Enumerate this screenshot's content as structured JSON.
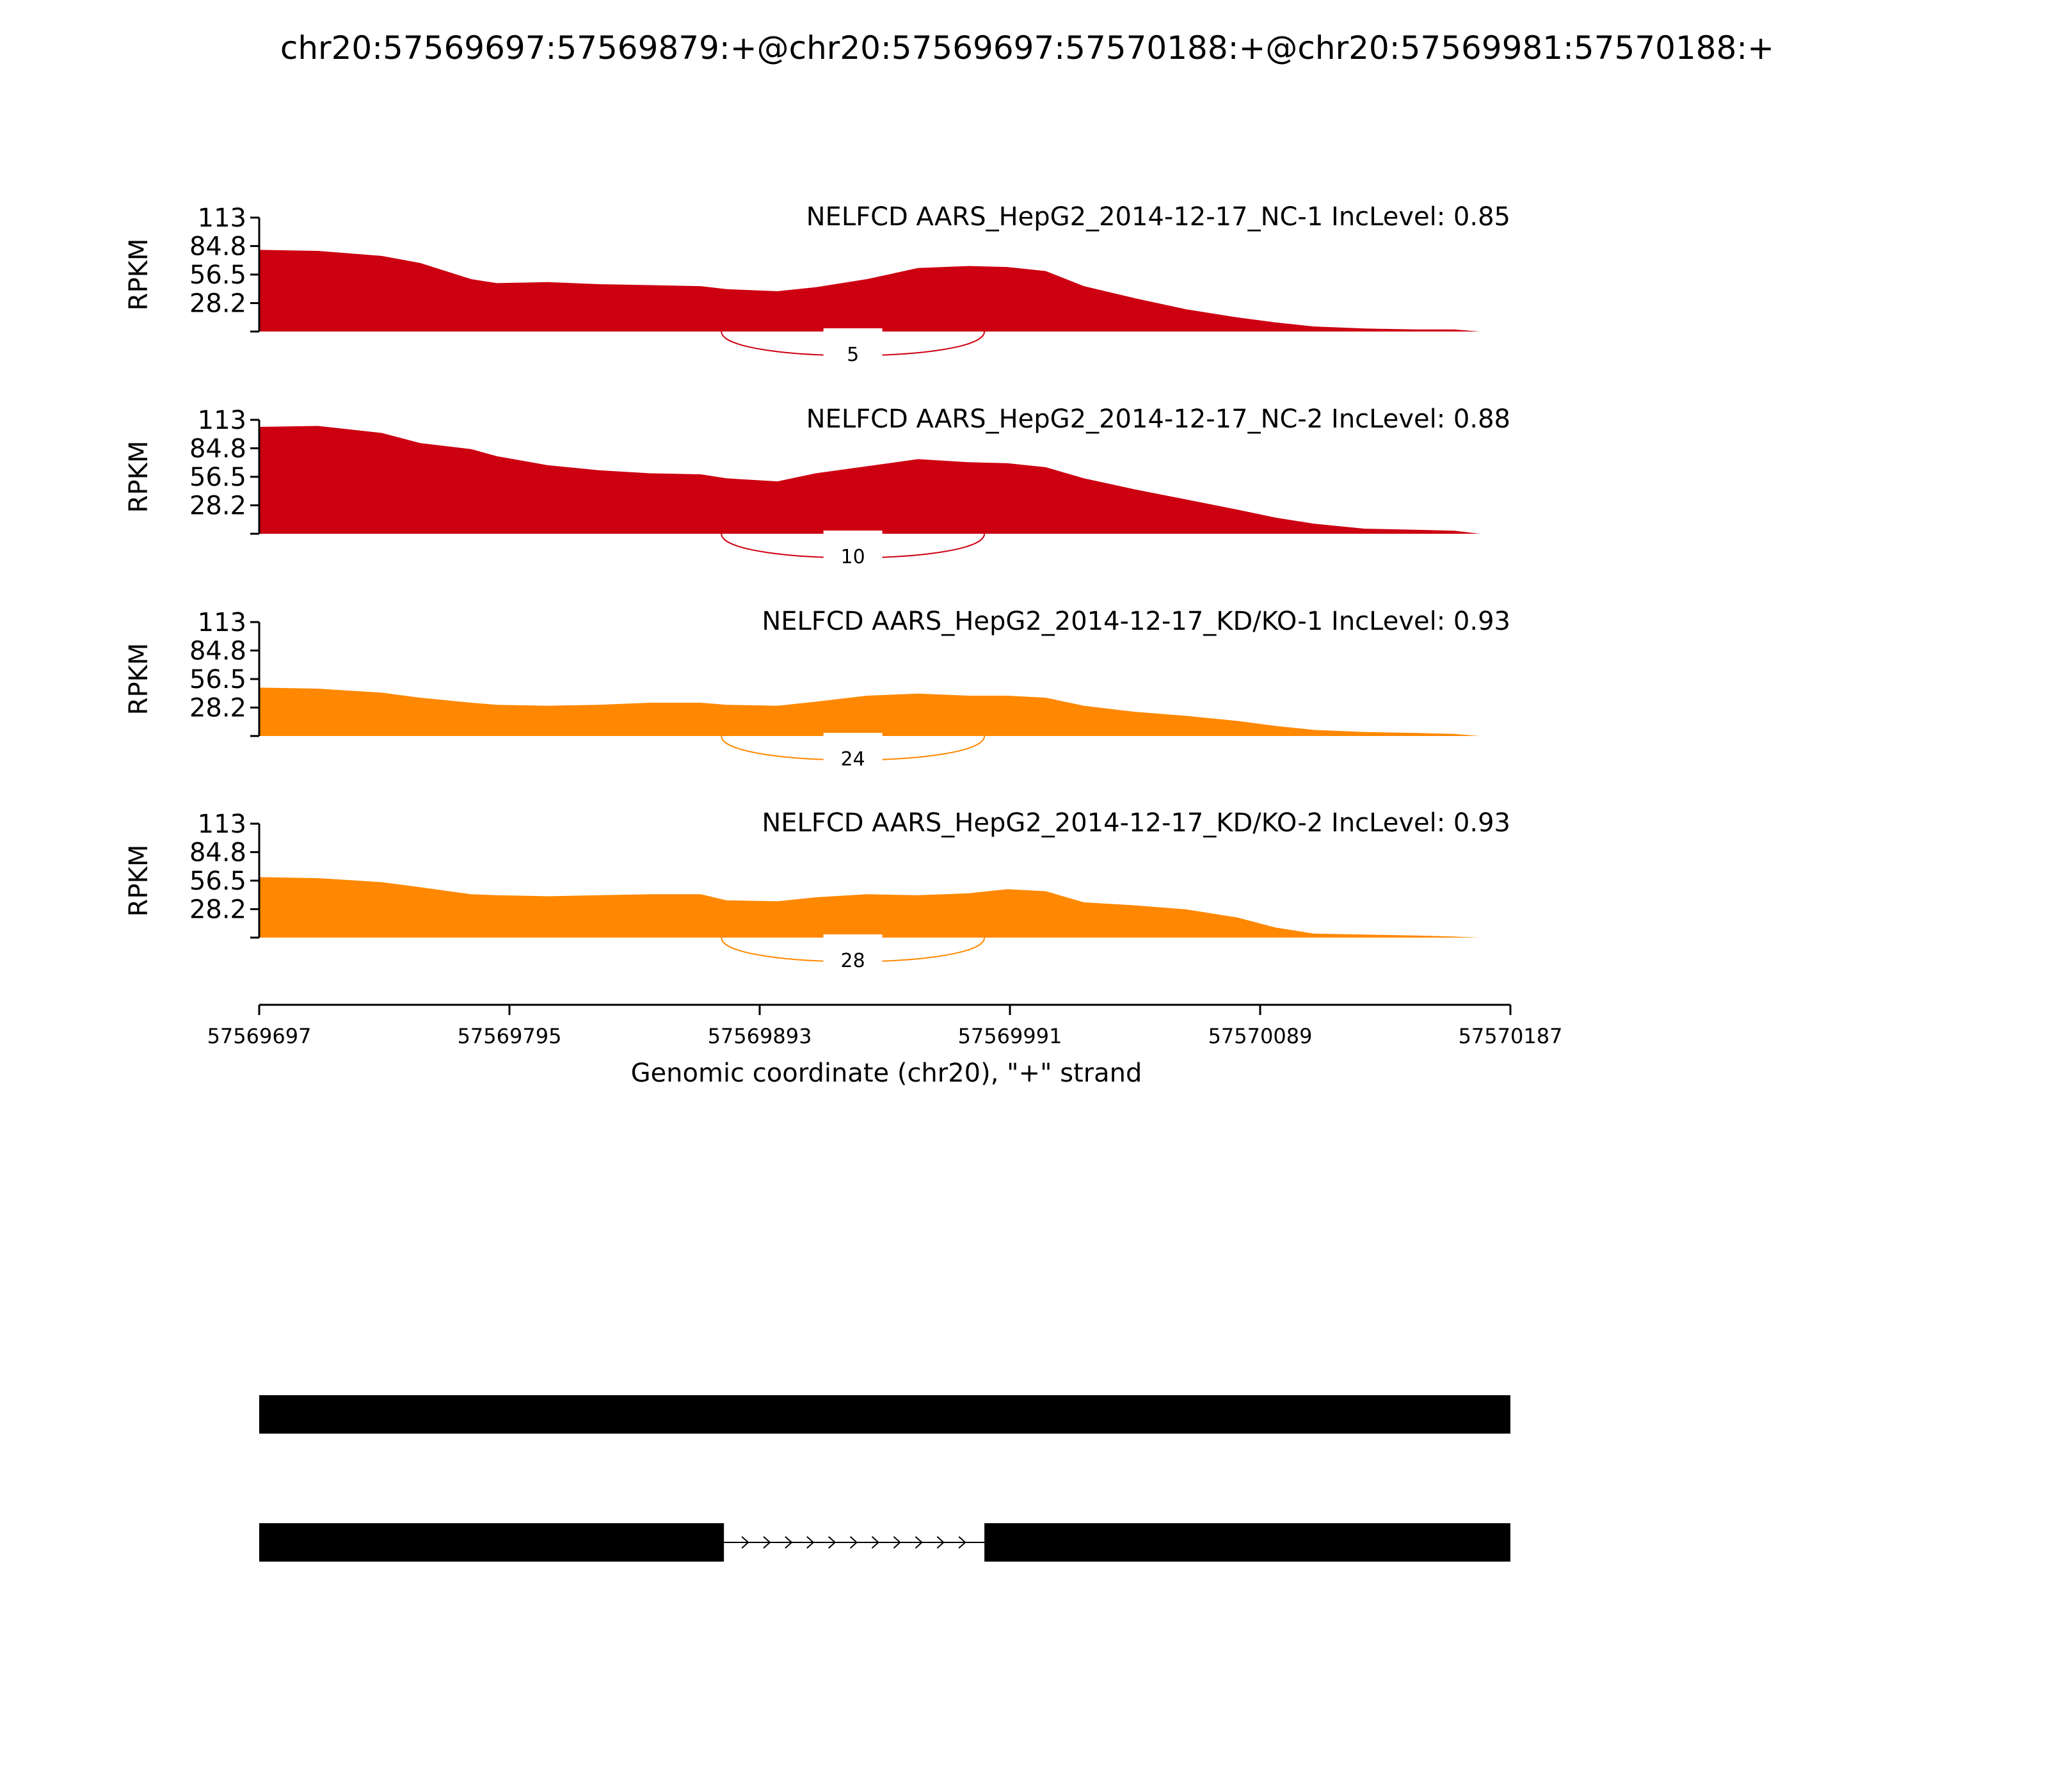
{
  "chart_data": {
    "type": "area",
    "title": "chr20:57569697:57569879:+@chr20:57569697:57570188:+@chr20:57569981:57570188:+",
    "xlabel": "Genomic coordinate (chr20), \"+\" strand",
    "ylabel": "RPKM",
    "xlim": [
      57569697,
      57570187
    ],
    "x_ticks": [
      "57569697",
      "57569795",
      "57569893",
      "57569991",
      "57570089",
      "57570187"
    ],
    "ylim": [
      0,
      113
    ],
    "y_ticks": [
      "28.2",
      "56.5",
      "84.8",
      "113"
    ],
    "junction": {
      "start": 57569878,
      "end": 57569981
    },
    "x": [
      57569697,
      57569720,
      57569745,
      57569760,
      57569780,
      57569790,
      57569810,
      57569830,
      57569850,
      57569870,
      57569880,
      57569900,
      57569915,
      57569935,
      57569955,
      57569975,
      57569990,
      57570005,
      57570020,
      57570040,
      57570060,
      57570080,
      57570095,
      57570110,
      57570130,
      57570150,
      57570165,
      57570175,
      57570187
    ],
    "series": [
      {
        "name": "NELFCD AARS_HepG2_2014-12-17_NC-1 IncLevel: 0.85",
        "color": "#cc0011",
        "junction_count": "5",
        "values": [
          81,
          80,
          75,
          68,
          52,
          48,
          49,
          47,
          46,
          45,
          42,
          40,
          44,
          52,
          63,
          65,
          64,
          60,
          45,
          33,
          22,
          14,
          9,
          5,
          3,
          2,
          2,
          0,
          0
        ]
      },
      {
        "name": "NELFCD AARS_HepG2_2014-12-17_NC-2 IncLevel: 0.88",
        "color": "#cc0011",
        "junction_count": "10",
        "values": [
          106,
          107,
          100,
          90,
          84,
          77,
          68,
          63,
          60,
          59,
          55,
          52,
          60,
          67,
          74,
          71,
          70,
          66,
          55,
          44,
          34,
          24,
          16,
          10,
          5,
          4,
          3,
          0,
          0
        ]
      },
      {
        "name": "NELFCD AARS_HepG2_2014-12-17_KD/KO-1 IncLevel: 0.93",
        "color": "#ff8800",
        "junction_count": "24",
        "values": [
          48,
          47,
          43,
          38,
          33,
          31,
          30,
          31,
          33,
          33,
          31,
          30,
          34,
          40,
          42,
          40,
          40,
          38,
          30,
          24,
          20,
          15,
          10,
          6,
          4,
          3,
          2,
          0,
          0
        ]
      },
      {
        "name": "NELFCD AARS_HepG2_2014-12-17_KD/KO-2 IncLevel: 0.93",
        "color": "#ff8800",
        "junction_count": "28",
        "values": [
          60,
          59,
          55,
          50,
          43,
          42,
          41,
          42,
          43,
          43,
          37,
          36,
          40,
          43,
          42,
          44,
          48,
          46,
          35,
          32,
          28,
          20,
          10,
          4,
          3,
          2,
          1,
          0,
          0
        ]
      }
    ],
    "isoforms": [
      {
        "exons": [
          [
            57569697,
            57570187
          ]
        ]
      },
      {
        "exons": [
          [
            57569697,
            57569879
          ],
          [
            57569981,
            57570187
          ]
        ]
      }
    ]
  }
}
